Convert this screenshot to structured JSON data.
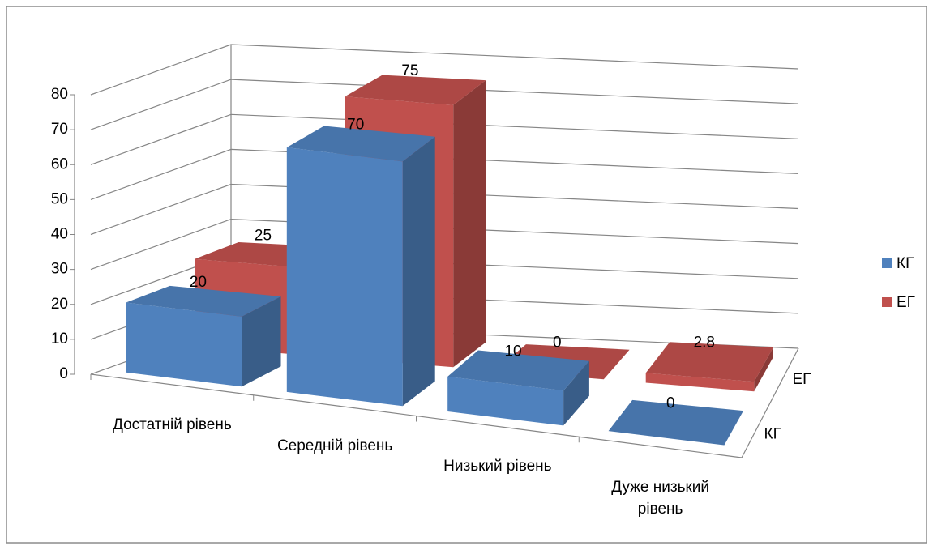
{
  "chart_data": {
    "type": "bar3d",
    "categories": [
      "Достатній рівень",
      "Середній рівень",
      "Низький рівень",
      "Дуже низький рівень"
    ],
    "series": [
      {
        "name": "КГ",
        "color": "#4f81bd",
        "values": [
          20,
          70,
          10,
          0
        ]
      },
      {
        "name": "ЕГ",
        "color": "#c0504d",
        "values": [
          25,
          75,
          0,
          2.8
        ]
      }
    ],
    "ylim": [
      0,
      80
    ],
    "yticks": [
      0,
      10,
      20,
      30,
      40,
      50,
      60,
      70,
      80
    ],
    "grid": true,
    "legend": "right"
  }
}
